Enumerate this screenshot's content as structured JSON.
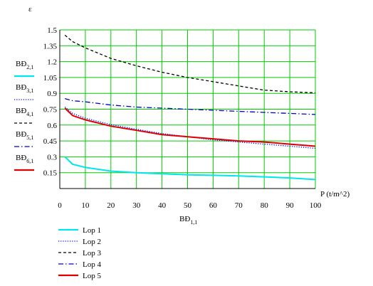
{
  "chart_data": {
    "type": "line",
    "ylabel": "ε",
    "xlabel": "P (t/m^2)",
    "xlabel_below": {
      "base": "BĐ",
      "sub": "1,1"
    },
    "xlim": [
      0,
      100
    ],
    "ylim": [
      0,
      1.5
    ],
    "grid": true,
    "grid_color": "#00cc00",
    "xticks": [
      "0",
      "10",
      "20",
      "30",
      "40",
      "50",
      "60",
      "70",
      "80",
      "90",
      "100"
    ],
    "yticks": [
      "0.15",
      "0.3",
      "0.45",
      "0.6",
      "0.75",
      "0.9",
      "1.05",
      "1.2",
      "1.35",
      "1.5"
    ],
    "left_labels": [
      {
        "base": "BĐ",
        "sub": "2,1",
        "color": "#00e5ee",
        "style": "solid"
      },
      {
        "base": "BĐ",
        "sub": "3,1",
        "color": "#0000ff",
        "style": "dotted"
      },
      {
        "base": "BĐ",
        "sub": "4,1",
        "color": "#000000",
        "style": "dashed"
      },
      {
        "base": "BĐ",
        "sub": "5,1",
        "color": "#0000cc",
        "style": "dashdot"
      },
      {
        "base": "BĐ",
        "sub": "6,1",
        "color": "#dd0000",
        "style": "solid"
      }
    ],
    "x": [
      2,
      5,
      10,
      20,
      30,
      40,
      50,
      60,
      70,
      80,
      90,
      100
    ],
    "series": [
      {
        "name": "Lop 1",
        "color": "#00e5ee",
        "style": "solid",
        "values": [
          0.3,
          0.23,
          0.2,
          0.165,
          0.15,
          0.14,
          0.13,
          0.125,
          0.12,
          0.11,
          0.1,
          0.085
        ]
      },
      {
        "name": "Lop 2",
        "color": "#0000ff",
        "style": "dotted",
        "values": [
          0.77,
          0.71,
          0.665,
          0.605,
          0.56,
          0.52,
          0.49,
          0.46,
          0.44,
          0.42,
          0.4,
          0.38
        ]
      },
      {
        "name": "Lop 3",
        "color": "#000000",
        "style": "dashed",
        "values": [
          1.45,
          1.39,
          1.33,
          1.23,
          1.16,
          1.1,
          1.05,
          1.01,
          0.97,
          0.93,
          0.915,
          0.905
        ]
      },
      {
        "name": "Lop 4",
        "color": "#0000cc",
        "style": "dashdot",
        "values": [
          0.85,
          0.83,
          0.82,
          0.79,
          0.77,
          0.76,
          0.75,
          0.74,
          0.73,
          0.72,
          0.71,
          0.7
        ]
      },
      {
        "name": "Lop 5",
        "color": "#dd0000",
        "style": "solid",
        "values": [
          0.76,
          0.69,
          0.65,
          0.59,
          0.55,
          0.51,
          0.49,
          0.47,
          0.45,
          0.44,
          0.42,
          0.4
        ]
      }
    ]
  }
}
